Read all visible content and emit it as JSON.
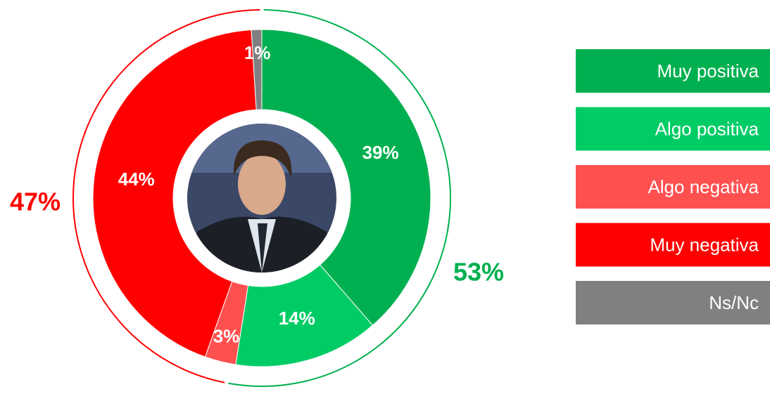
{
  "chart_data": {
    "type": "donut",
    "categories": [
      "Muy positiva",
      "Algo positiva",
      "Algo negativa",
      "Muy negativa",
      "Ns/Nc"
    ],
    "values": [
      39,
      14,
      3,
      44,
      1
    ],
    "value_labels": [
      "39%",
      "14%",
      "3%",
      "44%",
      "1%"
    ],
    "colors": [
      "#00b050",
      "#00cc66",
      "#ff5050",
      "#ff0000",
      "#808080"
    ],
    "totals": {
      "values": [
        53,
        47
      ],
      "value_labels": [
        "53%",
        "47%"
      ],
      "colors": [
        "#00b050",
        "#ff0000"
      ]
    }
  }
}
